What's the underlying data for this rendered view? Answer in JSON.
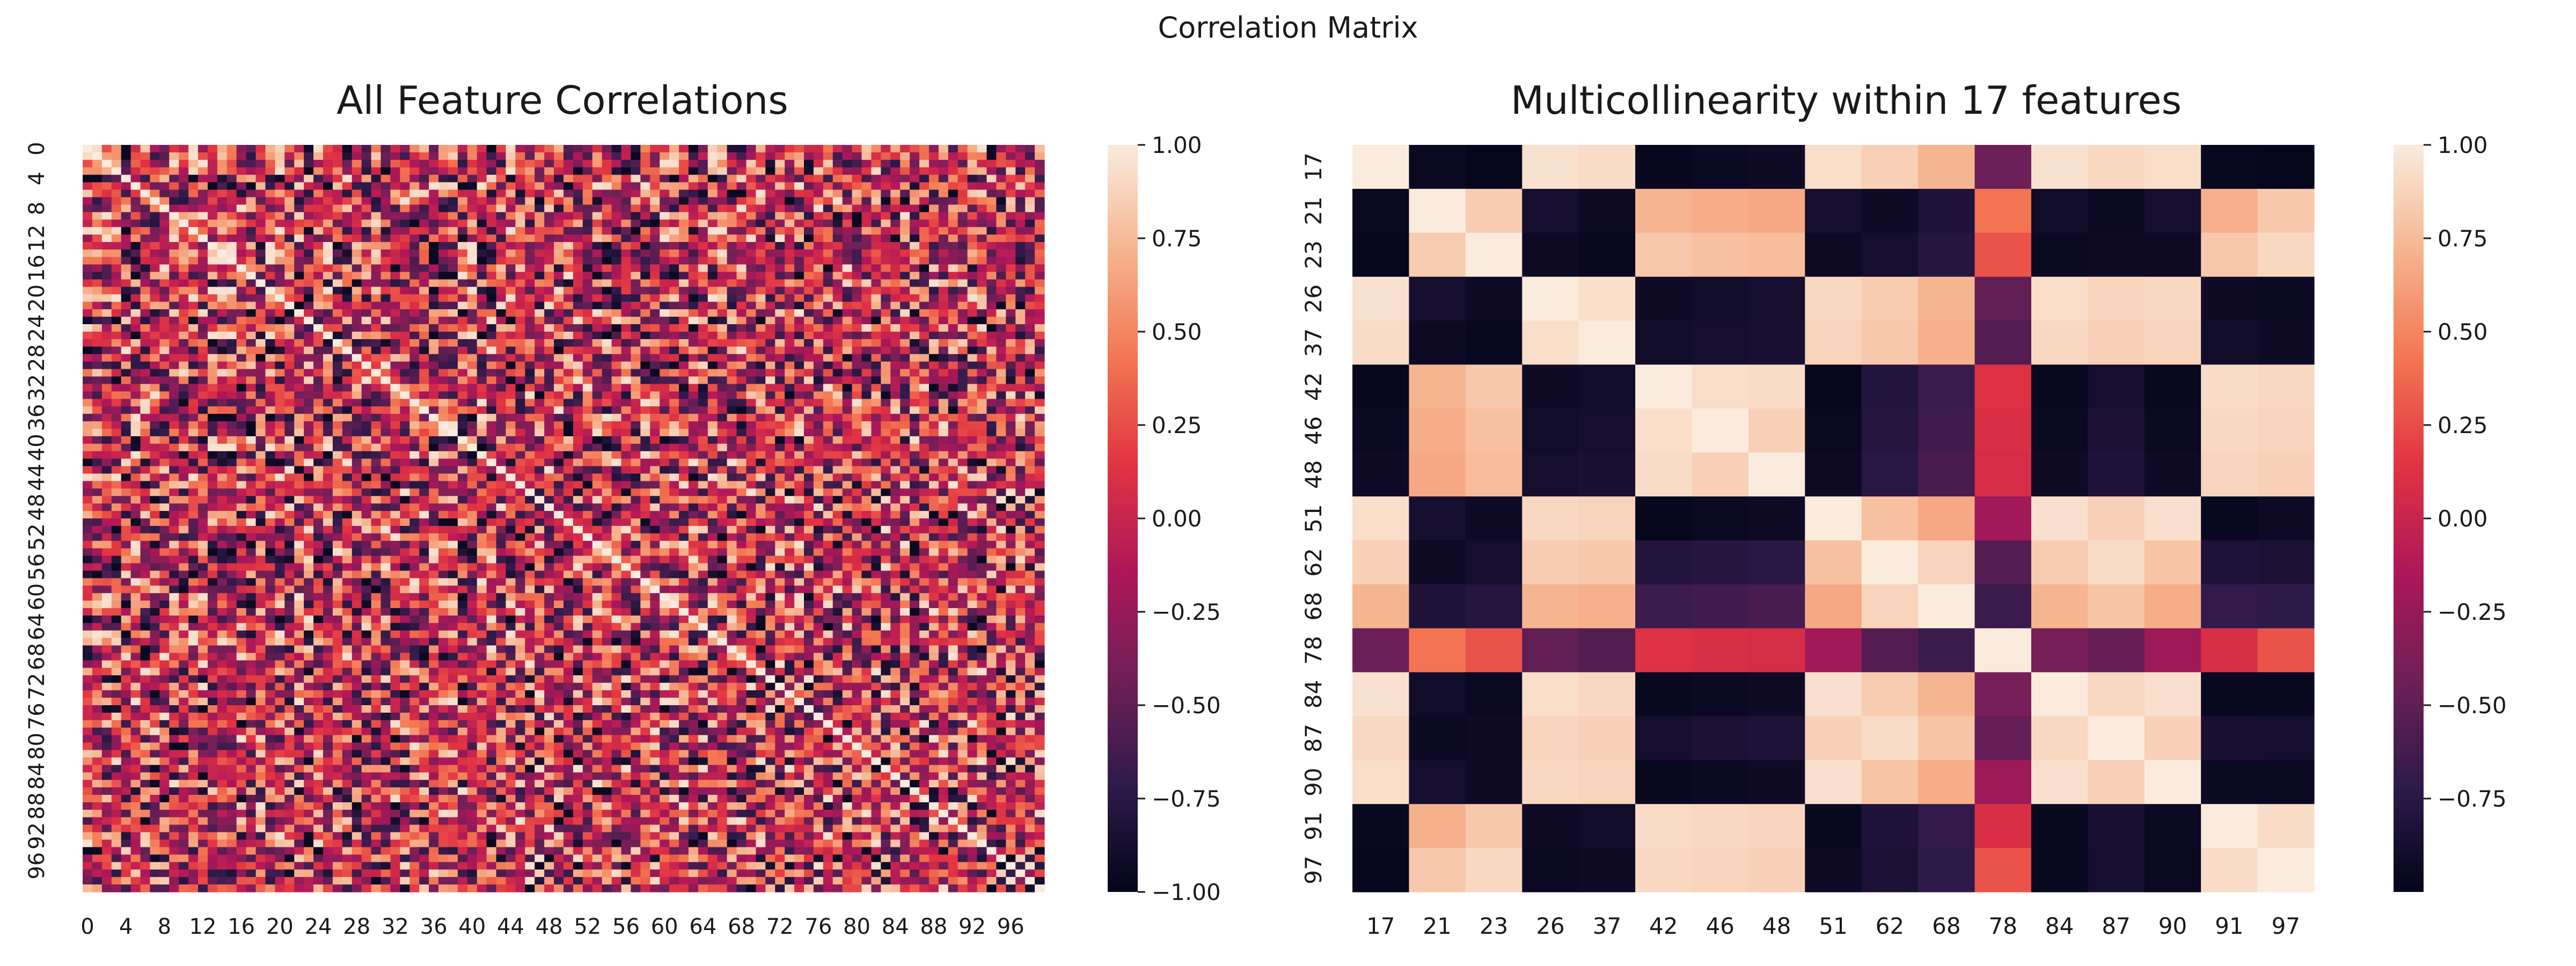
{
  "figure": {
    "suptitle": "Correlation Matrix"
  },
  "colormap": {
    "name": "rocket",
    "stops": [
      "#03051a",
      "#2f1a4a",
      "#701f57",
      "#ad1759",
      "#e13342",
      "#f37651",
      "#f6b48f",
      "#faebdd"
    ]
  },
  "chart_data": [
    {
      "type": "heatmap",
      "title": "All Feature Correlations",
      "xlabel": "",
      "ylabel": "",
      "n": 100,
      "tick_labels": [
        "0",
        "4",
        "8",
        "12",
        "16",
        "20",
        "24",
        "28",
        "32",
        "36",
        "40",
        "44",
        "48",
        "52",
        "56",
        "60",
        "64",
        "68",
        "72",
        "76",
        "80",
        "84",
        "88",
        "92",
        "96"
      ],
      "tick_indices": [
        0,
        4,
        8,
        12,
        16,
        20,
        24,
        28,
        32,
        36,
        40,
        44,
        48,
        52,
        56,
        60,
        64,
        68,
        72,
        76,
        80,
        84,
        88,
        92,
        96
      ],
      "vmin": -1,
      "vmax": 1,
      "diagonal": 1.0,
      "note_values": "100x100 correlation matrix; off-diagonal values mostly in [-0.9, 0.9]",
      "colorbar_ticks": [
        "1.00",
        "0.75",
        "0.50",
        "0.25",
        "0.00",
        "−0.25",
        "−0.50",
        "−0.75",
        "−1.00"
      ],
      "colorbar_values": [
        1.0,
        0.75,
        0.5,
        0.25,
        0.0,
        -0.25,
        -0.5,
        -0.75,
        -1.0
      ]
    },
    {
      "type": "heatmap",
      "title": "Multicollinearity within 17 features",
      "xlabel": "",
      "ylabel": "",
      "labels": [
        "17",
        "21",
        "23",
        "26",
        "37",
        "42",
        "46",
        "48",
        "51",
        "62",
        "68",
        "78",
        "84",
        "87",
        "90",
        "91",
        "97"
      ],
      "vmin": -1,
      "vmax": 1,
      "matrix": [
        [
          1.0,
          -0.95,
          -0.98,
          0.95,
          0.92,
          -0.97,
          -0.94,
          -0.92,
          0.93,
          0.86,
          0.72,
          -0.45,
          0.95,
          0.9,
          0.93,
          -0.96,
          -0.98
        ],
        [
          -0.95,
          1.0,
          0.84,
          -0.88,
          -0.93,
          0.72,
          0.68,
          0.66,
          -0.87,
          -0.92,
          -0.82,
          0.42,
          -0.9,
          -0.94,
          -0.88,
          0.7,
          0.82
        ],
        [
          -0.98,
          0.84,
          1.0,
          -0.93,
          -0.96,
          0.82,
          0.78,
          0.76,
          -0.93,
          -0.88,
          -0.78,
          0.28,
          -0.95,
          -0.92,
          -0.93,
          0.82,
          0.9
        ],
        [
          0.95,
          -0.88,
          -0.93,
          1.0,
          0.93,
          -0.92,
          -0.9,
          -0.88,
          0.9,
          0.84,
          0.72,
          -0.5,
          0.93,
          0.88,
          0.9,
          -0.92,
          -0.94
        ],
        [
          0.92,
          -0.93,
          -0.96,
          0.93,
          1.0,
          -0.9,
          -0.88,
          -0.85,
          0.88,
          0.82,
          0.7,
          -0.55,
          0.9,
          0.86,
          0.88,
          -0.9,
          -0.92
        ],
        [
          -0.97,
          0.72,
          0.82,
          -0.92,
          -0.9,
          1.0,
          0.93,
          0.92,
          -0.98,
          -0.8,
          -0.66,
          0.12,
          -0.96,
          -0.88,
          -0.96,
          0.92,
          0.9
        ],
        [
          -0.94,
          0.68,
          0.78,
          -0.9,
          -0.88,
          0.93,
          1.0,
          0.86,
          -0.95,
          -0.78,
          -0.64,
          0.1,
          -0.94,
          -0.84,
          -0.94,
          0.9,
          0.88
        ],
        [
          -0.92,
          0.66,
          0.76,
          -0.88,
          -0.85,
          0.92,
          0.86,
          1.0,
          -0.93,
          -0.76,
          -0.6,
          0.08,
          -0.92,
          -0.82,
          -0.92,
          0.88,
          0.86
        ],
        [
          0.93,
          -0.87,
          -0.93,
          0.9,
          0.88,
          -0.98,
          -0.95,
          -0.93,
          1.0,
          0.78,
          0.66,
          -0.2,
          0.94,
          0.86,
          0.94,
          -0.96,
          -0.93
        ],
        [
          0.86,
          -0.92,
          -0.88,
          0.84,
          0.82,
          -0.8,
          -0.78,
          -0.76,
          0.78,
          1.0,
          0.88,
          -0.55,
          0.84,
          0.92,
          0.8,
          -0.82,
          -0.84
        ],
        [
          0.72,
          -0.82,
          -0.78,
          0.72,
          0.7,
          -0.66,
          -0.64,
          -0.6,
          0.66,
          0.88,
          1.0,
          -0.66,
          0.72,
          0.8,
          0.68,
          -0.7,
          -0.72
        ],
        [
          -0.45,
          0.42,
          0.28,
          -0.5,
          -0.55,
          0.12,
          0.1,
          0.08,
          -0.2,
          -0.55,
          -0.66,
          1.0,
          -0.4,
          -0.48,
          -0.22,
          0.1,
          0.28
        ],
        [
          0.95,
          -0.9,
          -0.95,
          0.93,
          0.9,
          -0.96,
          -0.94,
          -0.92,
          0.94,
          0.84,
          0.72,
          -0.4,
          1.0,
          0.9,
          0.94,
          -0.96,
          -0.96
        ],
        [
          0.9,
          -0.94,
          -0.92,
          0.88,
          0.86,
          -0.88,
          -0.84,
          -0.82,
          0.86,
          0.92,
          0.8,
          -0.48,
          0.9,
          1.0,
          0.86,
          -0.86,
          -0.88
        ],
        [
          0.93,
          -0.88,
          -0.93,
          0.9,
          0.88,
          -0.96,
          -0.94,
          -0.92,
          0.94,
          0.8,
          0.68,
          -0.22,
          0.94,
          0.86,
          1.0,
          -0.94,
          -0.95
        ],
        [
          -0.96,
          0.7,
          0.82,
          -0.92,
          -0.9,
          0.92,
          0.9,
          0.88,
          -0.96,
          -0.82,
          -0.7,
          0.1,
          -0.96,
          -0.86,
          -0.94,
          1.0,
          0.92
        ],
        [
          -0.98,
          0.82,
          0.9,
          -0.94,
          -0.92,
          0.9,
          0.88,
          0.86,
          -0.93,
          -0.84,
          -0.72,
          0.28,
          -0.96,
          -0.88,
          -0.95,
          0.92,
          1.0
        ]
      ],
      "colorbar_ticks": [
        "1.00",
        "0.75",
        "0.50",
        "0.25",
        "0.00",
        "−0.25",
        "−0.50",
        "−0.75"
      ],
      "colorbar_values": [
        1.0,
        0.75,
        0.5,
        0.25,
        0.0,
        -0.25,
        -0.5,
        -0.75
      ]
    }
  ]
}
